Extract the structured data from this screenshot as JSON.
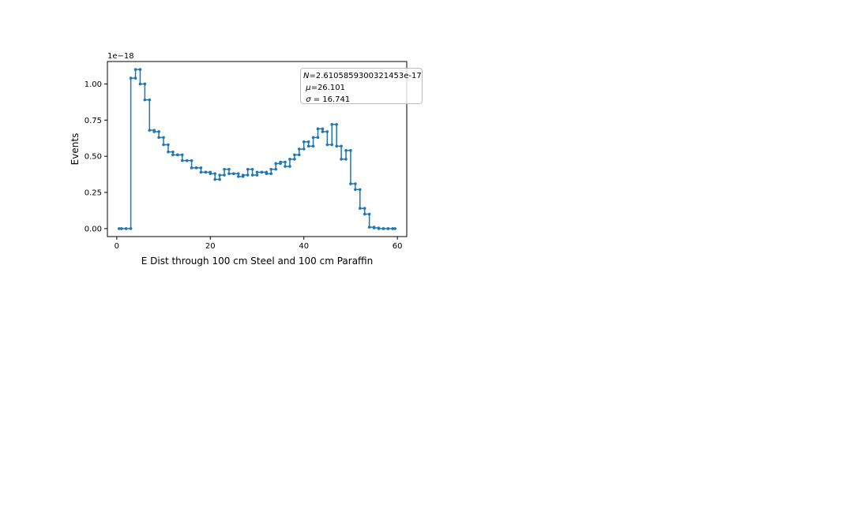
{
  "chart_data": {
    "type": "line",
    "drawstyle": "steps-mid",
    "markers": true,
    "title": "",
    "xlabel": "E Dist through 100 cm Steel and 100 cm Paraffin",
    "ylabel": "Events",
    "y_offset_label": "1e−18",
    "y_scale_factor": 1e-18,
    "xlim": [
      -2,
      62
    ],
    "ylim": [
      -0.055,
      1.155
    ],
    "x_ticks": [
      0,
      20,
      40,
      60
    ],
    "x_tick_labels": [
      "0",
      "20",
      "40",
      "60"
    ],
    "y_ticks": [
      0.0,
      0.25,
      0.5,
      0.75,
      1.0
    ],
    "y_tick_labels": [
      "0.00",
      "0.25",
      "0.50",
      "0.75",
      "1.00"
    ],
    "grid": false,
    "line_color": "#1f77b4",
    "x": [
      0.5,
      1.5,
      2.5,
      3.5,
      4.5,
      5.5,
      6.5,
      7.5,
      8.5,
      9.5,
      10.5,
      11.5,
      12.5,
      13.5,
      14.5,
      15.5,
      16.5,
      17.5,
      18.5,
      19.5,
      20.5,
      21.5,
      22.5,
      23.5,
      24.5,
      25.5,
      26.5,
      27.5,
      28.5,
      29.5,
      30.5,
      31.5,
      32.5,
      33.5,
      34.5,
      35.5,
      36.5,
      37.5,
      38.5,
      39.5,
      40.5,
      41.5,
      42.5,
      43.5,
      44.5,
      45.5,
      46.5,
      47.5,
      48.5,
      49.5,
      50.5,
      51.5,
      52.5,
      53.5,
      54.5,
      55.5,
      56.5,
      57.5,
      58.5,
      59.5
    ],
    "values": [
      0.0,
      0.0,
      0.0,
      1.04,
      1.1,
      1.0,
      0.89,
      0.68,
      0.67,
      0.63,
      0.58,
      0.53,
      0.51,
      0.51,
      0.47,
      0.47,
      0.42,
      0.42,
      0.39,
      0.39,
      0.38,
      0.34,
      0.37,
      0.41,
      0.38,
      0.38,
      0.36,
      0.37,
      0.41,
      0.37,
      0.39,
      0.39,
      0.38,
      0.41,
      0.45,
      0.46,
      0.43,
      0.48,
      0.51,
      0.55,
      0.6,
      0.57,
      0.63,
      0.69,
      0.67,
      0.58,
      0.72,
      0.57,
      0.48,
      0.54,
      0.31,
      0.27,
      0.14,
      0.1,
      0.01,
      0.005,
      0.0,
      0.0,
      0.0,
      0.0
    ],
    "legend": {
      "placement": "top-right",
      "n_symbol": "N",
      "n_value": "=2.6105859300321453e-17",
      "mu_symbol": "μ",
      "mu_value": "=26.101",
      "sigma_symbol": "σ",
      "sigma_value": " = 16.741"
    }
  }
}
